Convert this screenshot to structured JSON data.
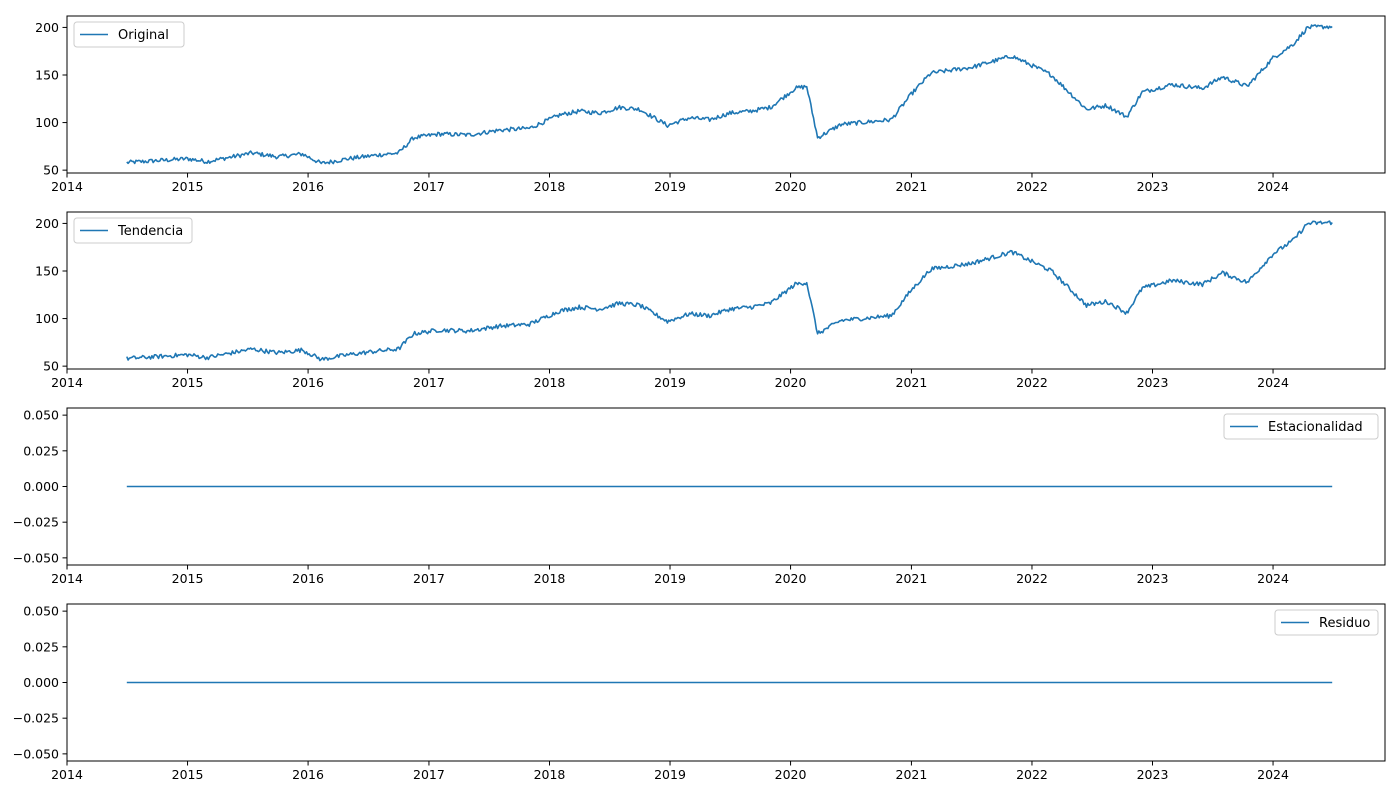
{
  "colors": {
    "line": "#1f77b4",
    "axis": "#000000",
    "legend_border": "#cccccc",
    "background": "#ffffff"
  },
  "chart_data": [
    {
      "type": "line",
      "legend": "Original",
      "legend_loc": "upper left",
      "grid": false,
      "xlim": [
        "2014-01-01",
        "2024-12-05"
      ],
      "ylim": [
        47,
        212
      ],
      "xticks": [
        "2014",
        "2015",
        "2016",
        "2017",
        "2018",
        "2019",
        "2020",
        "2021",
        "2022",
        "2023",
        "2024"
      ],
      "yticks": [
        "50",
        "100",
        "150",
        "200"
      ],
      "series": [
        {
          "name": "Original",
          "x": [
            "2014-07-01",
            "2014-10-01",
            "2015-01-01",
            "2015-03-01",
            "2015-05-01",
            "2015-07-15",
            "2015-10-01",
            "2015-12-15",
            "2016-02-10",
            "2016-05-01",
            "2016-08-01",
            "2016-10-01",
            "2016-11-15",
            "2017-02-01",
            "2017-05-01",
            "2017-08-01",
            "2017-11-01",
            "2018-02-01",
            "2018-04-01",
            "2018-06-01",
            "2018-08-01",
            "2018-10-01",
            "2018-12-24",
            "2019-03-01",
            "2019-05-01",
            "2019-07-01",
            "2019-09-01",
            "2019-11-01",
            "2020-01-15",
            "2020-02-19",
            "2020-03-23",
            "2020-06-01",
            "2020-09-01",
            "2020-11-01",
            "2021-01-01",
            "2021-03-01",
            "2021-05-01",
            "2021-07-01",
            "2021-09-01",
            "2021-11-01",
            "2022-01-01",
            "2022-03-01",
            "2022-06-15",
            "2022-08-15",
            "2022-10-15",
            "2022-12-01",
            "2023-03-01",
            "2023-06-01",
            "2023-08-01",
            "2023-10-15",
            "2024-01-01",
            "2024-03-01",
            "2024-04-15",
            "2024-06-28"
          ],
          "y": [
            58,
            60,
            62,
            59,
            63,
            68,
            64,
            67,
            57,
            62,
            66,
            68,
            84,
            88,
            87,
            92,
            94,
            108,
            112,
            110,
            116,
            114,
            97,
            105,
            103,
            110,
            112,
            116,
            136,
            138,
            84,
            98,
            101,
            103,
            130,
            152,
            155,
            158,
            164,
            170,
            160,
            150,
            114,
            118,
            106,
            132,
            140,
            136,
            148,
            138,
            168,
            182,
            200,
            201
          ]
        }
      ]
    },
    {
      "type": "line",
      "legend": "Tendencia",
      "legend_loc": "upper left",
      "grid": false,
      "xlim": [
        "2014-01-01",
        "2024-12-05"
      ],
      "ylim": [
        47,
        212
      ],
      "xticks": [
        "2014",
        "2015",
        "2016",
        "2017",
        "2018",
        "2019",
        "2020",
        "2021",
        "2022",
        "2023",
        "2024"
      ],
      "yticks": [
        "50",
        "100",
        "150",
        "200"
      ],
      "series": [
        {
          "name": "Tendencia",
          "x": [
            "2014-07-01",
            "2014-10-01",
            "2015-01-01",
            "2015-03-01",
            "2015-05-01",
            "2015-07-15",
            "2015-10-01",
            "2015-12-15",
            "2016-02-10",
            "2016-05-01",
            "2016-08-01",
            "2016-10-01",
            "2016-11-15",
            "2017-02-01",
            "2017-05-01",
            "2017-08-01",
            "2017-11-01",
            "2018-02-01",
            "2018-04-01",
            "2018-06-01",
            "2018-08-01",
            "2018-10-01",
            "2018-12-24",
            "2019-03-01",
            "2019-05-01",
            "2019-07-01",
            "2019-09-01",
            "2019-11-01",
            "2020-01-15",
            "2020-02-19",
            "2020-03-23",
            "2020-06-01",
            "2020-09-01",
            "2020-11-01",
            "2021-01-01",
            "2021-03-01",
            "2021-05-01",
            "2021-07-01",
            "2021-09-01",
            "2021-11-01",
            "2022-01-01",
            "2022-03-01",
            "2022-06-15",
            "2022-08-15",
            "2022-10-15",
            "2022-12-01",
            "2023-03-01",
            "2023-06-01",
            "2023-08-01",
            "2023-10-15",
            "2024-01-01",
            "2024-03-01",
            "2024-04-15",
            "2024-06-28"
          ],
          "y": [
            58,
            60,
            62,
            59,
            63,
            68,
            64,
            67,
            57,
            62,
            66,
            68,
            84,
            88,
            87,
            92,
            94,
            108,
            112,
            110,
            116,
            114,
            97,
            105,
            103,
            110,
            112,
            116,
            136,
            138,
            84,
            98,
            101,
            103,
            130,
            152,
            155,
            158,
            164,
            170,
            160,
            150,
            114,
            118,
            106,
            132,
            140,
            136,
            148,
            138,
            168,
            182,
            200,
            201
          ]
        }
      ]
    },
    {
      "type": "line",
      "legend": "Estacionalidad",
      "legend_loc": "upper right",
      "grid": false,
      "xlim": [
        "2014-01-01",
        "2024-12-05"
      ],
      "ylim": [
        -0.055,
        0.055
      ],
      "xticks": [
        "2014",
        "2015",
        "2016",
        "2017",
        "2018",
        "2019",
        "2020",
        "2021",
        "2022",
        "2023",
        "2024"
      ],
      "yticks": [
        "−0.050",
        "−0.025",
        "0.000",
        "0.025",
        "0.050"
      ],
      "series": [
        {
          "name": "Estacionalidad",
          "x": [
            "2014-07-01",
            "2024-06-28"
          ],
          "y": [
            0,
            0
          ]
        }
      ]
    },
    {
      "type": "line",
      "legend": "Residuo",
      "legend_loc": "upper right",
      "grid": false,
      "xlim": [
        "2014-01-01",
        "2024-12-05"
      ],
      "ylim": [
        -0.055,
        0.055
      ],
      "xticks": [
        "2014",
        "2015",
        "2016",
        "2017",
        "2018",
        "2019",
        "2020",
        "2021",
        "2022",
        "2023",
        "2024"
      ],
      "yticks": [
        "−0.050",
        "−0.025",
        "0.000",
        "0.025",
        "0.050"
      ],
      "series": [
        {
          "name": "Residuo",
          "x": [
            "2014-07-01",
            "2024-06-28"
          ],
          "y": [
            0,
            0
          ]
        }
      ]
    }
  ]
}
